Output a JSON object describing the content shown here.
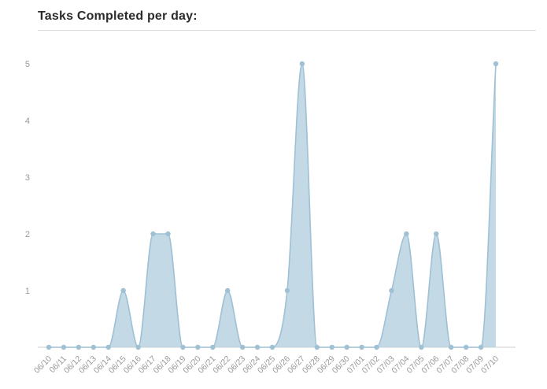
{
  "title": "Tasks Completed per day:",
  "chart_data": {
    "type": "area",
    "title": "Tasks Completed per day:",
    "x": [
      "06/10",
      "06/11",
      "06/12",
      "06/13",
      "06/14",
      "06/15",
      "06/16",
      "06/17",
      "06/18",
      "06/19",
      "06/20",
      "06/21",
      "06/22",
      "06/23",
      "06/24",
      "06/25",
      "06/26",
      "06/27",
      "06/28",
      "06/29",
      "06/30",
      "07/01",
      "07/02",
      "07/03",
      "07/04",
      "07/05",
      "07/06",
      "07/07",
      "07/08",
      "07/09",
      "07/10"
    ],
    "values": [
      0,
      0,
      0,
      0,
      0,
      1,
      0,
      2,
      2,
      0,
      0,
      0,
      1,
      0,
      0,
      0,
      1,
      5,
      0,
      0,
      0,
      0,
      0,
      1,
      2,
      0,
      2,
      0,
      0,
      0,
      5
    ],
    "xlabel": "",
    "ylabel": "",
    "ylim": [
      0,
      5
    ],
    "yticks": [
      1,
      2,
      3,
      4,
      5
    ],
    "grid": false,
    "legend": "none",
    "colors": {
      "area_fill": "#b9d2e1",
      "line": "#a0c0d4",
      "point": "#a0c0d4",
      "axis_line": "#cccccc",
      "tick_text": "#999999",
      "title_text": "#2b2b2b",
      "divider": "#dddddd"
    }
  }
}
